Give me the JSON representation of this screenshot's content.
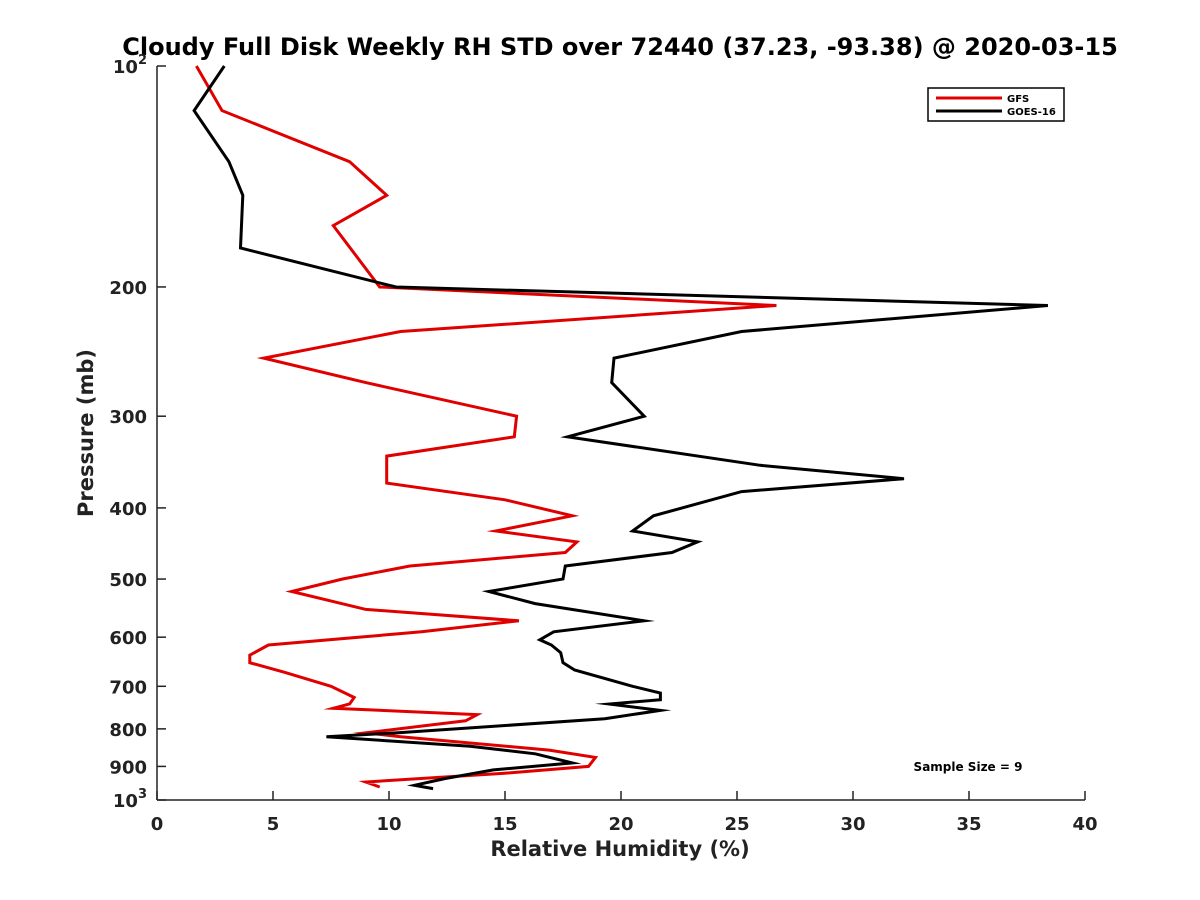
{
  "chart_data": {
    "type": "line",
    "title": "Cloudy Full Disk Weekly RH STD over 72440 (37.23, -93.38) @ 2020-03-15",
    "xlabel": "Relative Humidity (%)",
    "ylabel": "Pressure (mb)",
    "xlim": [
      0,
      40
    ],
    "ylim": [
      100,
      1000
    ],
    "y_scale": "log",
    "y_reversed": true,
    "grid": false,
    "legend_position": "top-right",
    "x_ticks": [
      0,
      5,
      10,
      15,
      20,
      25,
      30,
      35,
      40
    ],
    "x_tick_labels": [
      "0",
      "5",
      "10",
      "15",
      "20",
      "25",
      "30",
      "35",
      "40"
    ],
    "y_ticks": [
      100,
      200,
      300,
      400,
      500,
      600,
      700,
      800,
      900,
      1000
    ],
    "y_tick_labels": [
      {
        "base": "10",
        "sup": "2"
      },
      {
        "base": "200",
        "sup": ""
      },
      {
        "base": "300",
        "sup": ""
      },
      {
        "base": "400",
        "sup": ""
      },
      {
        "base": "500",
        "sup": ""
      },
      {
        "base": "600",
        "sup": ""
      },
      {
        "base": "700",
        "sup": ""
      },
      {
        "base": "800",
        "sup": ""
      },
      {
        "base": "900",
        "sup": ""
      },
      {
        "base": "10",
        "sup": "3"
      }
    ],
    "annotation": "Sample Size = 9",
    "series": [
      {
        "name": "GFS",
        "color": "#e00000",
        "points": [
          [
            1.7,
            100
          ],
          [
            2.8,
            115
          ],
          [
            8.3,
            135
          ],
          [
            9.9,
            150
          ],
          [
            7.6,
            165
          ],
          [
            9.6,
            200
          ],
          [
            26.7,
            212
          ],
          [
            10.5,
            230
          ],
          [
            4.6,
            250
          ],
          [
            9.0,
            270
          ],
          [
            15.5,
            300
          ],
          [
            15.4,
            320
          ],
          [
            9.9,
            340
          ],
          [
            9.9,
            370
          ],
          [
            15.0,
            390
          ],
          [
            17.9,
            410
          ],
          [
            14.6,
            430
          ],
          [
            18.1,
            445
          ],
          [
            17.6,
            460
          ],
          [
            10.9,
            480
          ],
          [
            8.0,
            500
          ],
          [
            5.8,
            520
          ],
          [
            9.0,
            550
          ],
          [
            15.6,
            570
          ],
          [
            11.4,
            590
          ],
          [
            4.8,
            615
          ],
          [
            4.0,
            635
          ],
          [
            4.0,
            650
          ],
          [
            5.5,
            670
          ],
          [
            7.5,
            700
          ],
          [
            8.5,
            725
          ],
          [
            8.3,
            740
          ],
          [
            7.6,
            750
          ],
          [
            13.8,
            765
          ],
          [
            13.3,
            780
          ],
          [
            9.0,
            810
          ],
          [
            10.5,
            820
          ],
          [
            16.9,
            855
          ],
          [
            18.9,
            875
          ],
          [
            18.6,
            900
          ],
          [
            14.9,
            920
          ],
          [
            9.0,
            945
          ],
          [
            9.6,
            960
          ]
        ]
      },
      {
        "name": "GOES-16",
        "color": "#000000",
        "points": [
          [
            2.9,
            100
          ],
          [
            1.6,
            115
          ],
          [
            3.1,
            135
          ],
          [
            3.7,
            150
          ],
          [
            3.6,
            177
          ],
          [
            10.3,
            200
          ],
          [
            38.4,
            212
          ],
          [
            25.2,
            230
          ],
          [
            19.7,
            250
          ],
          [
            19.6,
            270
          ],
          [
            21.0,
            300
          ],
          [
            17.7,
            320
          ],
          [
            26.0,
            350
          ],
          [
            32.2,
            365
          ],
          [
            25.2,
            380
          ],
          [
            21.4,
            410
          ],
          [
            20.5,
            430
          ],
          [
            23.3,
            445
          ],
          [
            22.2,
            460
          ],
          [
            17.6,
            480
          ],
          [
            17.5,
            500
          ],
          [
            14.3,
            520
          ],
          [
            16.3,
            540
          ],
          [
            21.0,
            570
          ],
          [
            17.1,
            590
          ],
          [
            16.5,
            605
          ],
          [
            17.0,
            615
          ],
          [
            17.4,
            630
          ],
          [
            17.5,
            650
          ],
          [
            18.0,
            665
          ],
          [
            20.5,
            700
          ],
          [
            21.7,
            715
          ],
          [
            21.7,
            730
          ],
          [
            19.5,
            740
          ],
          [
            21.7,
            755
          ],
          [
            19.3,
            775
          ],
          [
            10.4,
            810
          ],
          [
            7.3,
            820
          ],
          [
            13.5,
            845
          ],
          [
            16.3,
            865
          ],
          [
            17.9,
            890
          ],
          [
            14.5,
            910
          ],
          [
            12.4,
            935
          ],
          [
            11.1,
            955
          ],
          [
            11.9,
            965
          ]
        ]
      }
    ]
  }
}
